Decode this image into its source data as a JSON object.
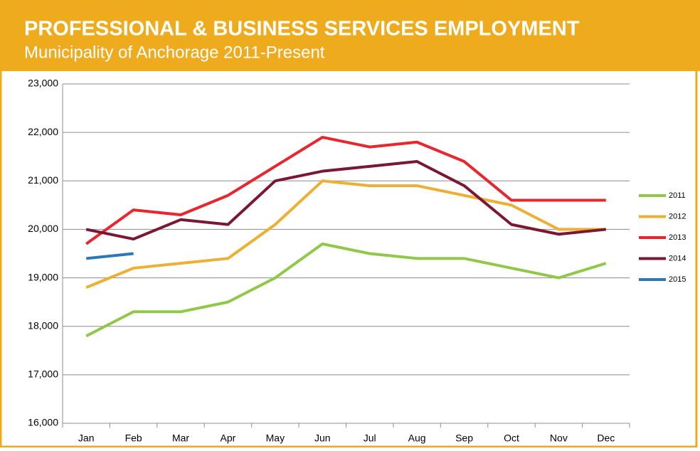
{
  "chart_data": {
    "type": "line",
    "title": "PROFESSIONAL & BUSINESS SERVICES EMPLOYMENT",
    "subtitle": "Municipality of Anchorage 2011-Present",
    "categories": [
      "Jan",
      "Feb",
      "Mar",
      "Apr",
      "May",
      "Jun",
      "Jul",
      "Aug",
      "Sep",
      "Oct",
      "Nov",
      "Dec"
    ],
    "series": [
      {
        "name": "2011",
        "color": "#92c84a",
        "values": [
          17800,
          18300,
          18300,
          18500,
          19000,
          19700,
          19500,
          19400,
          19400,
          19200,
          19000,
          19300
        ]
      },
      {
        "name": "2012",
        "color": "#ecb034",
        "values": [
          18800,
          19200,
          19300,
          19400,
          20100,
          21000,
          20900,
          20900,
          20700,
          20500,
          20000,
          20000
        ]
      },
      {
        "name": "2013",
        "color": "#e8262d",
        "values": [
          19700,
          20400,
          20300,
          20700,
          21300,
          21900,
          21700,
          21800,
          21400,
          20600,
          20600,
          20600
        ]
      },
      {
        "name": "2014",
        "color": "#7a1834",
        "values": [
          20000,
          19800,
          20200,
          20100,
          21000,
          21200,
          21300,
          21400,
          20900,
          20100,
          19900,
          20000
        ]
      },
      {
        "name": "2015",
        "color": "#2a78b8",
        "values": [
          19400,
          19500,
          null,
          null,
          null,
          null,
          null,
          null,
          null,
          null,
          null,
          null
        ]
      }
    ],
    "ylim": [
      16000,
      23000
    ],
    "yticks": [
      {
        "value": 16000,
        "label": "16,000"
      },
      {
        "value": 17000,
        "label": "17,000"
      },
      {
        "value": 18000,
        "label": "18,000"
      },
      {
        "value": 19000,
        "label": "19,000"
      },
      {
        "value": 20000,
        "label": "20,000"
      },
      {
        "value": 21000,
        "label": "21,000"
      },
      {
        "value": 22000,
        "label": "22,000"
      },
      {
        "value": 23000,
        "label": "23,000"
      }
    ],
    "grid": true,
    "legend": "right"
  }
}
